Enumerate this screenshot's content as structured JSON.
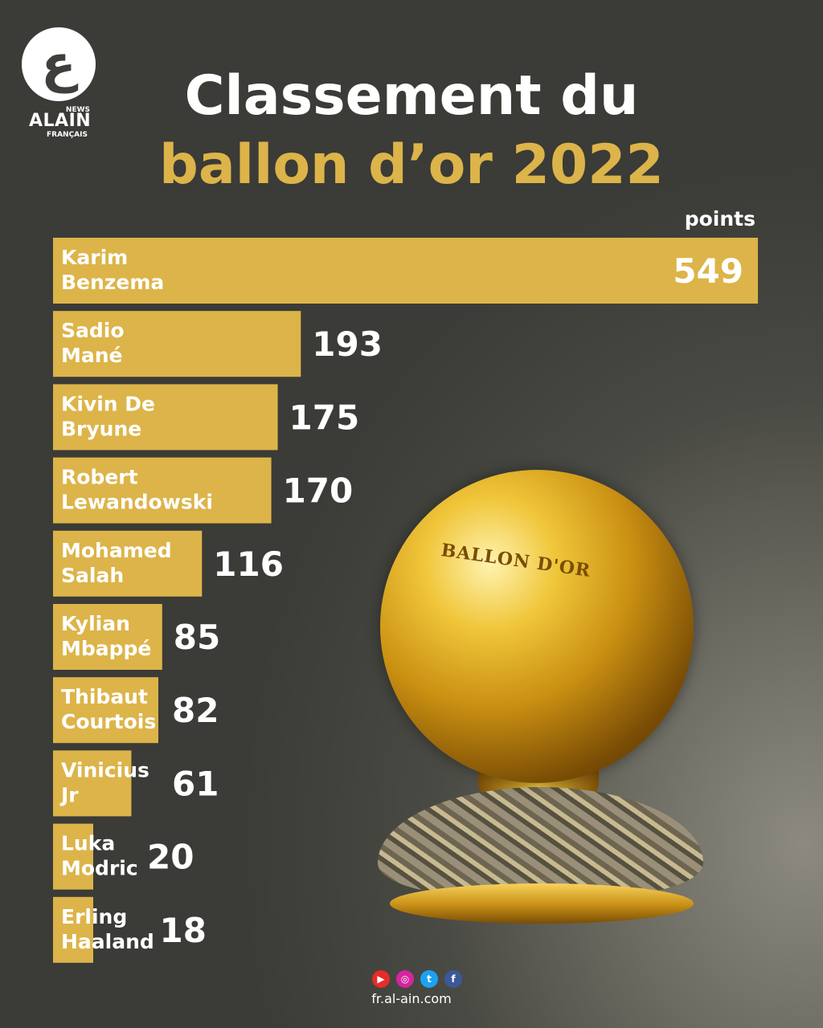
{
  "logo": {
    "glyph": "ع",
    "news": "NEWS",
    "brand": "ALAIN",
    "sub": "FRANÇAIS"
  },
  "title": {
    "line1": "Classement du",
    "line2": "ballon d’or 2022"
  },
  "colors": {
    "accent": "#dcb449",
    "title": "#ffffff",
    "background": "#3b3b37"
  },
  "trophy": {
    "engraving": "BALLON D'OR"
  },
  "social": {
    "icons": [
      "youtube-icon",
      "instagram-icon",
      "twitter-icon",
      "facebook-icon"
    ]
  },
  "footer": {
    "url": "fr.al-ain.com"
  },
  "chart_data": {
    "type": "bar",
    "orientation": "horizontal",
    "units_label": "points",
    "categories": [
      [
        "Karim",
        "Benzema"
      ],
      [
        "Sadio",
        "Mané"
      ],
      [
        "Kivin De",
        "Bryune"
      ],
      [
        "Robert",
        "Lewandowski"
      ],
      [
        "Mohamed",
        "Salah"
      ],
      [
        "Kylian",
        "Mbappé"
      ],
      [
        "Thibaut",
        "Courtois"
      ],
      [
        "Vinicius",
        "Jr"
      ],
      [
        "Luka",
        "Modric"
      ],
      [
        "Erling",
        "Haaland"
      ]
    ],
    "values": [
      549,
      193,
      175,
      170,
      116,
      85,
      82,
      61,
      20,
      18
    ],
    "xlim": [
      0,
      549
    ],
    "grid": false,
    "legend": "none"
  }
}
